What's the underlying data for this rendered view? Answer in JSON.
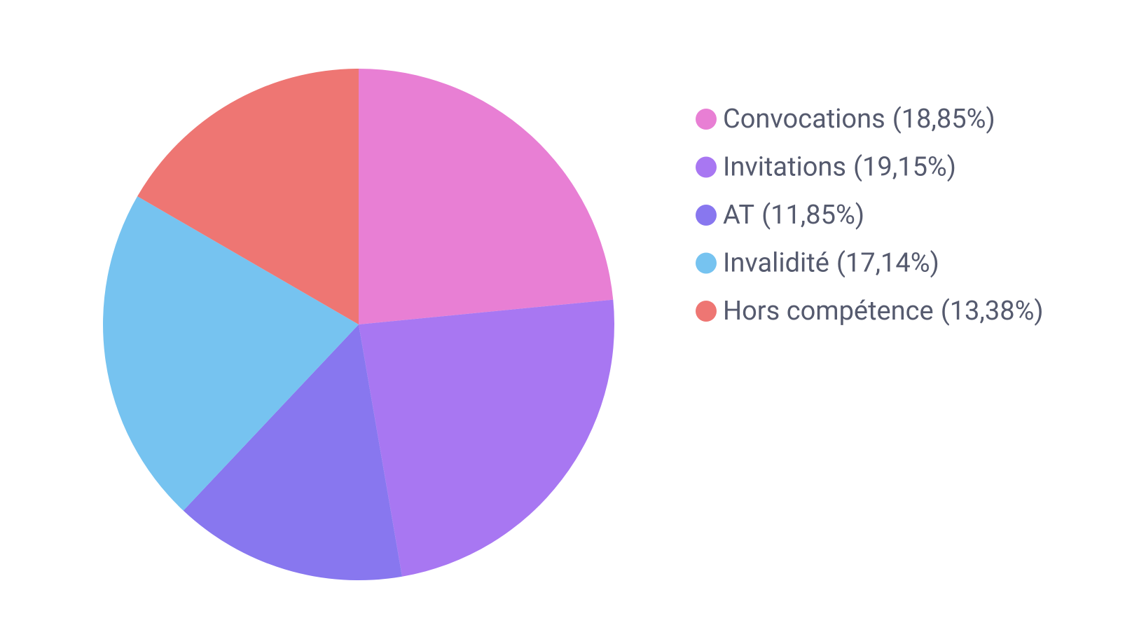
{
  "chart_data": {
    "type": "pie",
    "categories": [
      "Convocations",
      "Invitations",
      "AT",
      "Invalidité",
      "Hors compétence"
    ],
    "values": [
      18.85,
      19.15,
      11.85,
      17.14,
      13.38
    ],
    "value_labels": [
      "(18,85%)",
      "(19,15%)",
      "(11,85%)",
      "(17,14%)",
      "(13,38%)"
    ],
    "colors": [
      "#e87fd4",
      "#a877f2",
      "#8877ef",
      "#76c3f0",
      "#ee7673"
    ],
    "legend": "right"
  }
}
